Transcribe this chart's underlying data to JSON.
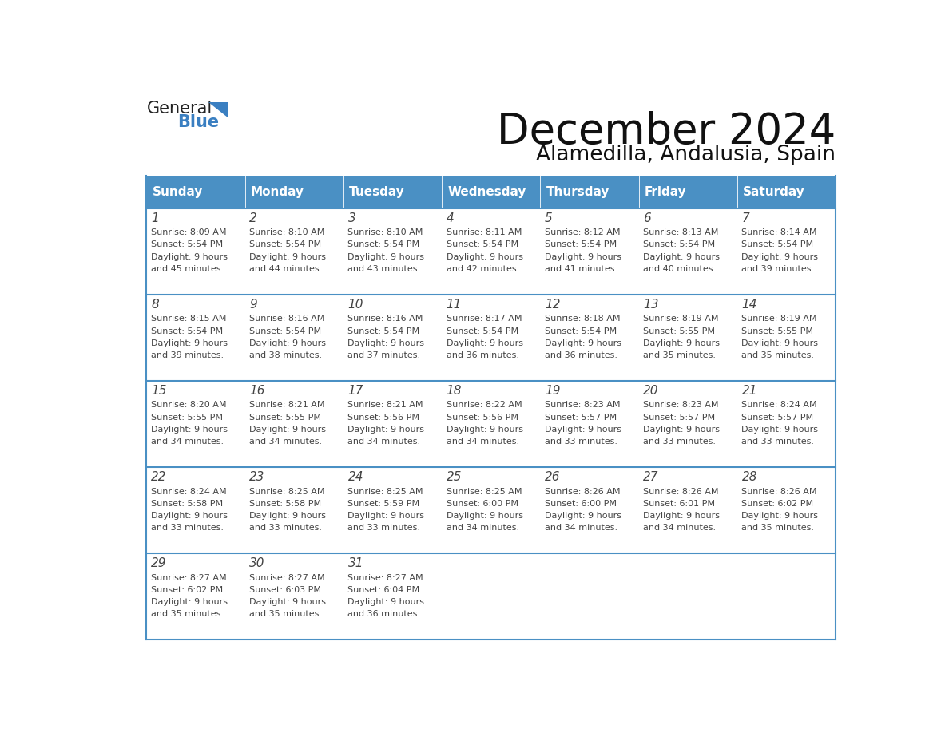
{
  "title": "December 2024",
  "subtitle": "Alamedilla, Andalusia, Spain",
  "header_color": "#4a90c4",
  "header_text_color": "#ffffff",
  "days_of_week": [
    "Sunday",
    "Monday",
    "Tuesday",
    "Wednesday",
    "Thursday",
    "Friday",
    "Saturday"
  ],
  "weeks": [
    [
      {
        "day": 1,
        "sunrise": "8:09 AM",
        "sunset": "5:54 PM",
        "daylight": "9 hours and 45 minutes."
      },
      {
        "day": 2,
        "sunrise": "8:10 AM",
        "sunset": "5:54 PM",
        "daylight": "9 hours and 44 minutes."
      },
      {
        "day": 3,
        "sunrise": "8:10 AM",
        "sunset": "5:54 PM",
        "daylight": "9 hours and 43 minutes."
      },
      {
        "day": 4,
        "sunrise": "8:11 AM",
        "sunset": "5:54 PM",
        "daylight": "9 hours and 42 minutes."
      },
      {
        "day": 5,
        "sunrise": "8:12 AM",
        "sunset": "5:54 PM",
        "daylight": "9 hours and 41 minutes."
      },
      {
        "day": 6,
        "sunrise": "8:13 AM",
        "sunset": "5:54 PM",
        "daylight": "9 hours and 40 minutes."
      },
      {
        "day": 7,
        "sunrise": "8:14 AM",
        "sunset": "5:54 PM",
        "daylight": "9 hours and 39 minutes."
      }
    ],
    [
      {
        "day": 8,
        "sunrise": "8:15 AM",
        "sunset": "5:54 PM",
        "daylight": "9 hours and 39 minutes."
      },
      {
        "day": 9,
        "sunrise": "8:16 AM",
        "sunset": "5:54 PM",
        "daylight": "9 hours and 38 minutes."
      },
      {
        "day": 10,
        "sunrise": "8:16 AM",
        "sunset": "5:54 PM",
        "daylight": "9 hours and 37 minutes."
      },
      {
        "day": 11,
        "sunrise": "8:17 AM",
        "sunset": "5:54 PM",
        "daylight": "9 hours and 36 minutes."
      },
      {
        "day": 12,
        "sunrise": "8:18 AM",
        "sunset": "5:54 PM",
        "daylight": "9 hours and 36 minutes."
      },
      {
        "day": 13,
        "sunrise": "8:19 AM",
        "sunset": "5:55 PM",
        "daylight": "9 hours and 35 minutes."
      },
      {
        "day": 14,
        "sunrise": "8:19 AM",
        "sunset": "5:55 PM",
        "daylight": "9 hours and 35 minutes."
      }
    ],
    [
      {
        "day": 15,
        "sunrise": "8:20 AM",
        "sunset": "5:55 PM",
        "daylight": "9 hours and 34 minutes."
      },
      {
        "day": 16,
        "sunrise": "8:21 AM",
        "sunset": "5:55 PM",
        "daylight": "9 hours and 34 minutes."
      },
      {
        "day": 17,
        "sunrise": "8:21 AM",
        "sunset": "5:56 PM",
        "daylight": "9 hours and 34 minutes."
      },
      {
        "day": 18,
        "sunrise": "8:22 AM",
        "sunset": "5:56 PM",
        "daylight": "9 hours and 34 minutes."
      },
      {
        "day": 19,
        "sunrise": "8:23 AM",
        "sunset": "5:57 PM",
        "daylight": "9 hours and 33 minutes."
      },
      {
        "day": 20,
        "sunrise": "8:23 AM",
        "sunset": "5:57 PM",
        "daylight": "9 hours and 33 minutes."
      },
      {
        "day": 21,
        "sunrise": "8:24 AM",
        "sunset": "5:57 PM",
        "daylight": "9 hours and 33 minutes."
      }
    ],
    [
      {
        "day": 22,
        "sunrise": "8:24 AM",
        "sunset": "5:58 PM",
        "daylight": "9 hours and 33 minutes."
      },
      {
        "day": 23,
        "sunrise": "8:25 AM",
        "sunset": "5:58 PM",
        "daylight": "9 hours and 33 minutes."
      },
      {
        "day": 24,
        "sunrise": "8:25 AM",
        "sunset": "5:59 PM",
        "daylight": "9 hours and 33 minutes."
      },
      {
        "day": 25,
        "sunrise": "8:25 AM",
        "sunset": "6:00 PM",
        "daylight": "9 hours and 34 minutes."
      },
      {
        "day": 26,
        "sunrise": "8:26 AM",
        "sunset": "6:00 PM",
        "daylight": "9 hours and 34 minutes."
      },
      {
        "day": 27,
        "sunrise": "8:26 AM",
        "sunset": "6:01 PM",
        "daylight": "9 hours and 34 minutes."
      },
      {
        "day": 28,
        "sunrise": "8:26 AM",
        "sunset": "6:02 PM",
        "daylight": "9 hours and 35 minutes."
      }
    ],
    [
      {
        "day": 29,
        "sunrise": "8:27 AM",
        "sunset": "6:02 PM",
        "daylight": "9 hours and 35 minutes."
      },
      {
        "day": 30,
        "sunrise": "8:27 AM",
        "sunset": "6:03 PM",
        "daylight": "9 hours and 35 minutes."
      },
      {
        "day": 31,
        "sunrise": "8:27 AM",
        "sunset": "6:04 PM",
        "daylight": "9 hours and 36 minutes."
      },
      null,
      null,
      null,
      null
    ]
  ],
  "cell_bg_color": "#ffffff",
  "border_color": "#4a90c4",
  "day_num_color": "#444444",
  "text_color": "#444444",
  "logo_general_color": "#222222",
  "logo_blue_color": "#3a7fc1"
}
